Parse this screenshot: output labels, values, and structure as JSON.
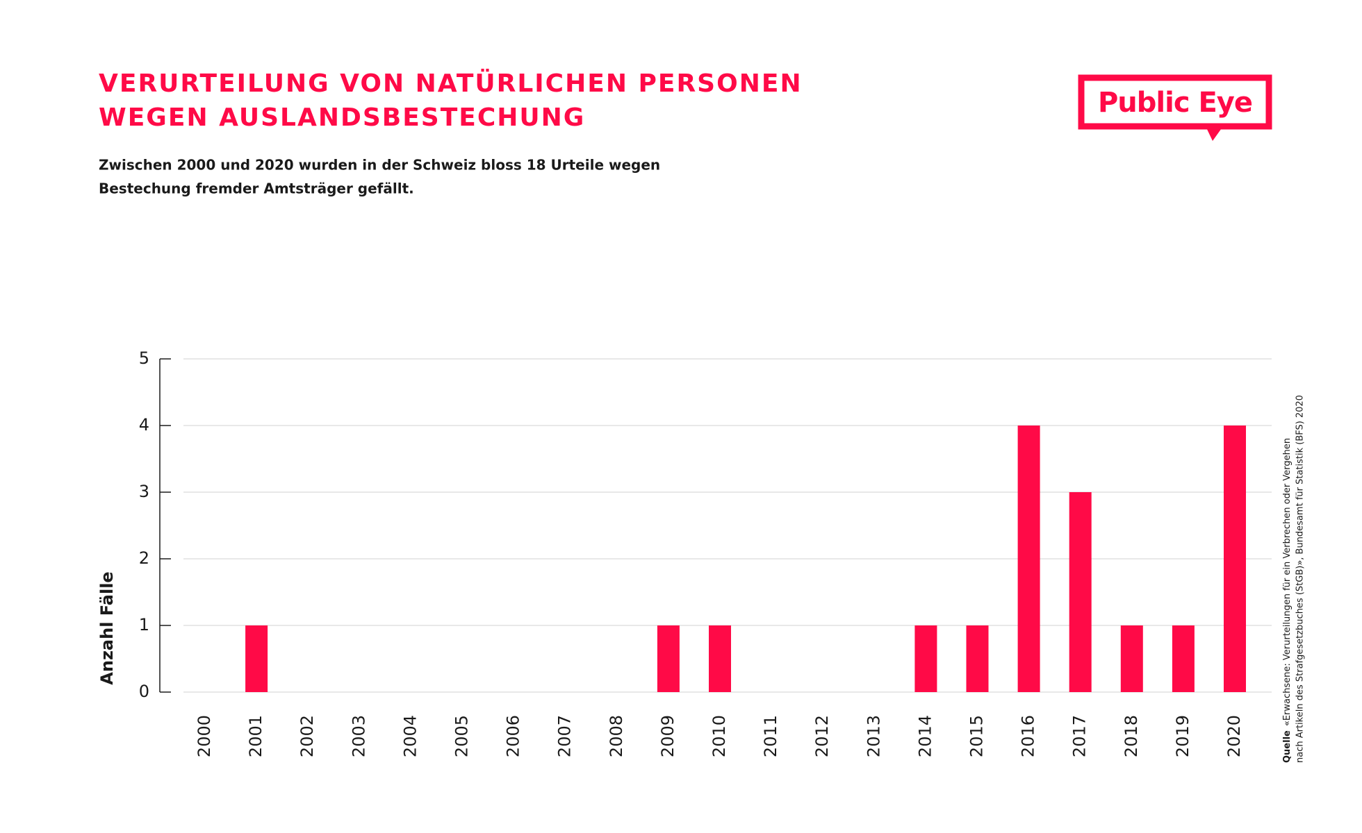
{
  "chart_data": {
    "type": "bar",
    "title_lines": [
      "VERURTEILUNG VON NATÜRLICHEN PERSONEN",
      "WEGEN AUSLANDSBESTECHUNG"
    ],
    "subtitle_lines": [
      "Zwischen 2000 und 2020 wurden in der Schweiz bloss 18 Urteile wegen",
      "Bestechung fremder Amtsträger gefällt."
    ],
    "logo": "Public Eye",
    "y_label": "Anzahl Fälle",
    "source_label": "Quelle",
    "source_lines": [
      "«Erwachsene: Verurteilungen für ein Verbrechen oder Vergehen",
      "nach Artikeln des Strafgesetzbuches (StGB)», Bundesamt für Statistik (BFS) 2020"
    ],
    "categories": [
      "2000",
      "2001",
      "2002",
      "2003",
      "2004",
      "2005",
      "2006",
      "2007",
      "2008",
      "2009",
      "2010",
      "2011",
      "2012",
      "2013",
      "2014",
      "2015",
      "2016",
      "2017",
      "2018",
      "2019",
      "2020"
    ],
    "values": [
      0,
      1,
      0,
      0,
      0,
      0,
      0,
      0,
      0,
      1,
      1,
      0,
      0,
      0,
      1,
      1,
      4,
      3,
      1,
      1,
      4
    ],
    "color": "#ff0a47",
    "ylim": [
      0,
      5
    ],
    "yticks": [
      0,
      1,
      2,
      3,
      4,
      5
    ],
    "grid": true
  }
}
